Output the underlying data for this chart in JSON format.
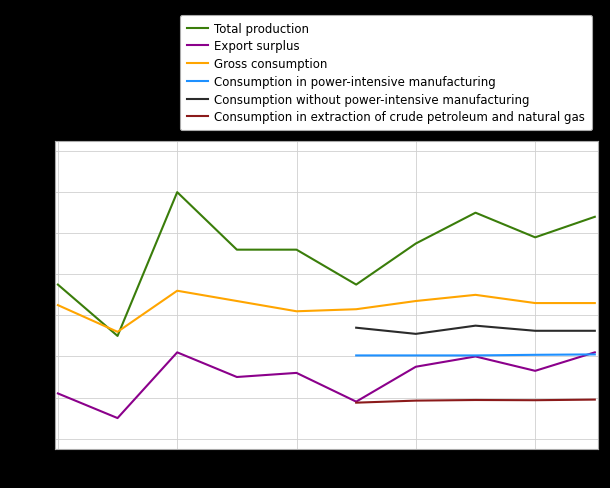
{
  "x": [
    0,
    1,
    2,
    3,
    4,
    5,
    6,
    7,
    8,
    9
  ],
  "total_production": [
    11.5,
    9.0,
    16.0,
    13.2,
    13.2,
    11.5,
    13.5,
    15.0,
    13.8,
    14.8
  ],
  "export_surplus": [
    6.2,
    5.0,
    8.2,
    7.0,
    7.2,
    5.8,
    7.5,
    8.0,
    7.3,
    8.2
  ],
  "gross_consumption": [
    10.5,
    9.2,
    11.2,
    10.7,
    10.2,
    10.3,
    10.7,
    11.0,
    10.6,
    10.6
  ],
  "consumption_power_intensive": [
    null,
    null,
    null,
    null,
    null,
    8.05,
    8.05,
    8.05,
    8.08,
    8.1
  ],
  "consumption_without_power_intensive": [
    null,
    null,
    null,
    null,
    null,
    9.4,
    9.1,
    9.5,
    9.25,
    9.25
  ],
  "consumption_extraction": [
    null,
    null,
    null,
    null,
    null,
    5.75,
    5.85,
    5.88,
    5.87,
    5.9
  ],
  "colors": {
    "total_production": "#3a7d0a",
    "export_surplus": "#8B008B",
    "gross_consumption": "#FFA500",
    "consumption_power_intensive": "#1E90FF",
    "consumption_without_power_intensive": "#2b2b2b",
    "consumption_extraction": "#8B1a1a"
  },
  "legend_labels": [
    "Total production",
    "Export surplus",
    "Gross consumption",
    "Consumption in power-intensive manufacturing",
    "Consumption without power-intensive manufacturing",
    "Consumption in extraction of crude petroleum and natural gas"
  ],
  "grid_color": "#d0d0d0",
  "fig_facecolor": "#000000",
  "ax_facecolor": "#ffffff",
  "figsize": [
    6.1,
    4.89
  ],
  "dpi": 100,
  "linewidth": 1.5
}
